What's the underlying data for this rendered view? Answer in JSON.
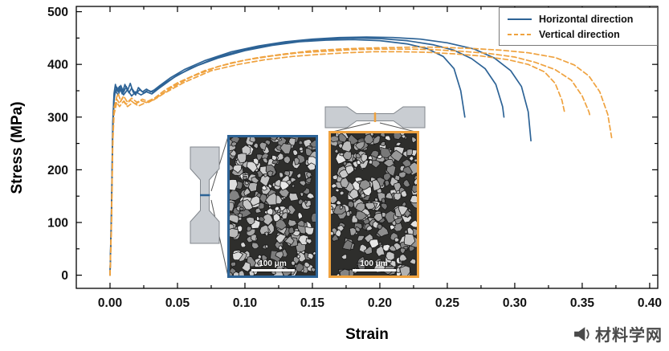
{
  "watermark": {
    "text": "材料学网",
    "icon": "megaphone-icon"
  },
  "insets": {
    "blue": {
      "scale_label": "100 μm",
      "border_color": "#2d6396"
    },
    "orange": {
      "scale_label": "100 μm",
      "border_color": "#efa23f"
    }
  },
  "chart_data": {
    "type": "line",
    "title": "",
    "xlabel": "Strain",
    "ylabel": "Stress (MPa)",
    "xlim": [
      -0.025,
      0.406
    ],
    "ylim": [
      -25,
      510
    ],
    "x_ticks": [
      "0.00",
      "0.05",
      "0.10",
      "0.15",
      "0.20",
      "0.25",
      "0.30",
      "0.35",
      "0.40"
    ],
    "x_tick_values": [
      0,
      0.05,
      0.1,
      0.15,
      0.2,
      0.25,
      0.3,
      0.35,
      0.4
    ],
    "y_ticks": [
      "0",
      "100",
      "200",
      "300",
      "400",
      "500"
    ],
    "y_tick_values": [
      0,
      100,
      200,
      300,
      400,
      500
    ],
    "x_minor_step": 0.025,
    "y_minor_step": 50,
    "grid": false,
    "legend_position": "top-right",
    "legend": [
      {
        "label": "Horizontal direction",
        "color": "#2d6396",
        "style": "solid"
      },
      {
        "label": "Vertical direction",
        "color": "#efa23f",
        "style": "dashed"
      }
    ],
    "series": [
      {
        "name": "horizontal-1",
        "group": "Horizontal direction",
        "color": "#2d6396",
        "style": "solid",
        "points": [
          [
            0,
            0
          ],
          [
            0.001,
            120
          ],
          [
            0.002,
            290
          ],
          [
            0.003,
            345
          ],
          [
            0.004,
            362
          ],
          [
            0.005,
            350
          ],
          [
            0.007,
            358
          ],
          [
            0.009,
            344
          ],
          [
            0.011,
            362
          ],
          [
            0.013,
            350
          ],
          [
            0.015,
            364
          ],
          [
            0.017,
            348
          ],
          [
            0.019,
            342
          ],
          [
            0.021,
            356
          ],
          [
            0.024,
            348
          ],
          [
            0.027,
            353
          ],
          [
            0.03,
            348
          ],
          [
            0.033,
            352
          ],
          [
            0.037,
            360
          ],
          [
            0.045,
            375
          ],
          [
            0.055,
            390
          ],
          [
            0.07,
            407
          ],
          [
            0.09,
            424
          ],
          [
            0.11,
            435
          ],
          [
            0.13,
            443
          ],
          [
            0.15,
            448
          ],
          [
            0.17,
            451
          ],
          [
            0.19,
            452
          ],
          [
            0.21,
            451
          ],
          [
            0.23,
            448
          ],
          [
            0.25,
            441
          ],
          [
            0.27,
            429
          ],
          [
            0.285,
            412
          ],
          [
            0.297,
            388
          ],
          [
            0.305,
            358
          ],
          [
            0.31,
            310
          ],
          [
            0.312,
            255
          ]
        ]
      },
      {
        "name": "horizontal-2",
        "group": "Horizontal direction",
        "color": "#2d6396",
        "style": "solid",
        "points": [
          [
            0,
            0
          ],
          [
            0.001,
            110
          ],
          [
            0.002,
            280
          ],
          [
            0.003,
            340
          ],
          [
            0.005,
            357
          ],
          [
            0.006,
            348
          ],
          [
            0.008,
            360
          ],
          [
            0.01,
            347
          ],
          [
            0.012,
            358
          ],
          [
            0.014,
            346
          ],
          [
            0.016,
            355
          ],
          [
            0.019,
            344
          ],
          [
            0.022,
            352
          ],
          [
            0.025,
            346
          ],
          [
            0.028,
            351
          ],
          [
            0.032,
            347
          ],
          [
            0.038,
            360
          ],
          [
            0.048,
            376
          ],
          [
            0.06,
            393
          ],
          [
            0.08,
            414
          ],
          [
            0.1,
            428
          ],
          [
            0.12,
            438
          ],
          [
            0.14,
            445
          ],
          [
            0.16,
            448
          ],
          [
            0.18,
            450
          ],
          [
            0.2,
            449
          ],
          [
            0.22,
            445
          ],
          [
            0.24,
            437
          ],
          [
            0.255,
            427
          ],
          [
            0.268,
            411
          ],
          [
            0.278,
            392
          ],
          [
            0.286,
            362
          ],
          [
            0.291,
            320
          ],
          [
            0.292,
            300
          ]
        ]
      },
      {
        "name": "horizontal-3",
        "group": "Horizontal direction",
        "color": "#2d6396",
        "style": "solid",
        "points": [
          [
            0,
            0
          ],
          [
            0.001,
            100
          ],
          [
            0.002,
            270
          ],
          [
            0.003,
            332
          ],
          [
            0.004,
            350
          ],
          [
            0.006,
            342
          ],
          [
            0.008,
            354
          ],
          [
            0.01,
            342
          ],
          [
            0.013,
            352
          ],
          [
            0.016,
            340
          ],
          [
            0.019,
            348
          ],
          [
            0.023,
            342
          ],
          [
            0.027,
            348
          ],
          [
            0.031,
            344
          ],
          [
            0.036,
            354
          ],
          [
            0.05,
            380
          ],
          [
            0.065,
            398
          ],
          [
            0.08,
            412
          ],
          [
            0.1,
            426
          ],
          [
            0.12,
            436
          ],
          [
            0.14,
            443
          ],
          [
            0.16,
            446
          ],
          [
            0.18,
            447
          ],
          [
            0.2,
            445
          ],
          [
            0.22,
            439
          ],
          [
            0.235,
            430
          ],
          [
            0.247,
            415
          ],
          [
            0.255,
            392
          ],
          [
            0.26,
            350
          ],
          [
            0.263,
            300
          ]
        ]
      },
      {
        "name": "vertical-1",
        "group": "Vertical direction",
        "color": "#efa23f",
        "style": "dashed",
        "points": [
          [
            0,
            0
          ],
          [
            0.001,
            100
          ],
          [
            0.002,
            260
          ],
          [
            0.003,
            318
          ],
          [
            0.005,
            338
          ],
          [
            0.006,
            345
          ],
          [
            0.008,
            330
          ],
          [
            0.01,
            340
          ],
          [
            0.013,
            328
          ],
          [
            0.016,
            336
          ],
          [
            0.02,
            328
          ],
          [
            0.024,
            334
          ],
          [
            0.028,
            330
          ],
          [
            0.033,
            336
          ],
          [
            0.04,
            350
          ],
          [
            0.05,
            365
          ],
          [
            0.07,
            388
          ],
          [
            0.09,
            403
          ],
          [
            0.11,
            413
          ],
          [
            0.13,
            420
          ],
          [
            0.15,
            426
          ],
          [
            0.17,
            429
          ],
          [
            0.19,
            431
          ],
          [
            0.21,
            432
          ],
          [
            0.23,
            433
          ],
          [
            0.25,
            432
          ],
          [
            0.27,
            430
          ],
          [
            0.29,
            427
          ],
          [
            0.31,
            422
          ],
          [
            0.33,
            413
          ],
          [
            0.344,
            399
          ],
          [
            0.355,
            378
          ],
          [
            0.363,
            348
          ],
          [
            0.369,
            305
          ],
          [
            0.372,
            258
          ]
        ]
      },
      {
        "name": "vertical-2",
        "group": "Vertical direction",
        "color": "#efa23f",
        "style": "dashed",
        "points": [
          [
            0,
            0
          ],
          [
            0.001,
            95
          ],
          [
            0.002,
            255
          ],
          [
            0.003,
            312
          ],
          [
            0.005,
            334
          ],
          [
            0.007,
            326
          ],
          [
            0.009,
            336
          ],
          [
            0.012,
            324
          ],
          [
            0.015,
            332
          ],
          [
            0.019,
            325
          ],
          [
            0.023,
            331
          ],
          [
            0.028,
            327
          ],
          [
            0.034,
            336
          ],
          [
            0.045,
            355
          ],
          [
            0.06,
            376
          ],
          [
            0.08,
            396
          ],
          [
            0.1,
            408
          ],
          [
            0.12,
            416
          ],
          [
            0.14,
            422
          ],
          [
            0.16,
            425
          ],
          [
            0.18,
            428
          ],
          [
            0.2,
            429
          ],
          [
            0.22,
            429
          ],
          [
            0.24,
            428
          ],
          [
            0.26,
            425
          ],
          [
            0.28,
            421
          ],
          [
            0.3,
            414
          ],
          [
            0.315,
            404
          ],
          [
            0.33,
            390
          ],
          [
            0.342,
            370
          ],
          [
            0.35,
            340
          ],
          [
            0.355,
            310
          ],
          [
            0.356,
            300
          ]
        ]
      },
      {
        "name": "vertical-3",
        "group": "Vertical direction",
        "color": "#efa23f",
        "style": "dashed",
        "points": [
          [
            0,
            0
          ],
          [
            0.001,
            90
          ],
          [
            0.002,
            250
          ],
          [
            0.003,
            305
          ],
          [
            0.005,
            328
          ],
          [
            0.007,
            320
          ],
          [
            0.01,
            330
          ],
          [
            0.013,
            320
          ],
          [
            0.017,
            328
          ],
          [
            0.021,
            321
          ],
          [
            0.026,
            327
          ],
          [
            0.032,
            332
          ],
          [
            0.04,
            345
          ],
          [
            0.055,
            366
          ],
          [
            0.075,
            388
          ],
          [
            0.095,
            400
          ],
          [
            0.115,
            409
          ],
          [
            0.135,
            415
          ],
          [
            0.155,
            419
          ],
          [
            0.175,
            422
          ],
          [
            0.195,
            424
          ],
          [
            0.215,
            424
          ],
          [
            0.235,
            423
          ],
          [
            0.255,
            420
          ],
          [
            0.275,
            416
          ],
          [
            0.295,
            409
          ],
          [
            0.31,
            400
          ],
          [
            0.322,
            386
          ],
          [
            0.33,
            364
          ],
          [
            0.335,
            332
          ],
          [
            0.337,
            308
          ]
        ]
      }
    ]
  }
}
